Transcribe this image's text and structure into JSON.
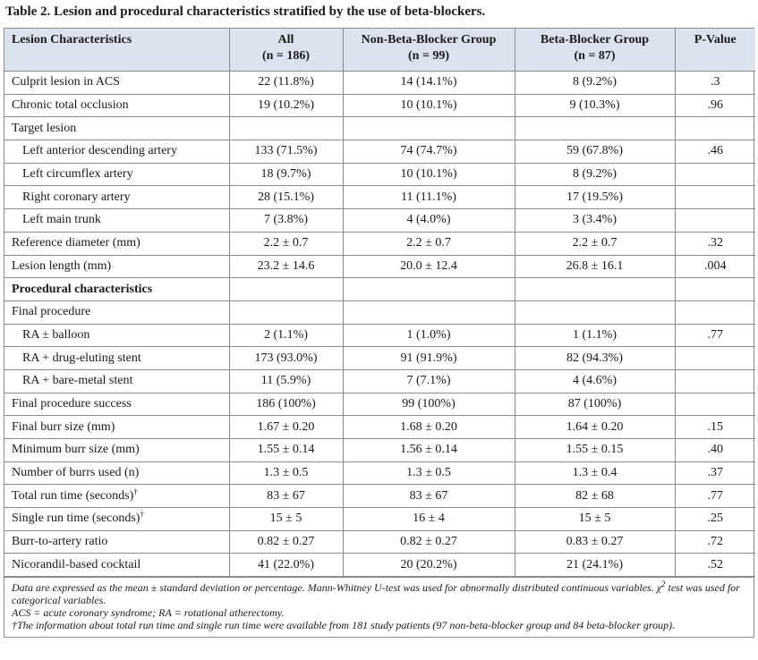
{
  "title": "Table 2. Lesion and procedural characteristics stratified by the use of beta-blockers.",
  "table": {
    "header": [
      [
        "Lesion Characteristics"
      ],
      [
        "All",
        "(n = 186)"
      ],
      [
        "Non-Beta-Blocker Group",
        "(n = 99)"
      ],
      [
        "Beta-Blocker Group",
        "(n = 87)"
      ],
      [
        "P-Value"
      ]
    ],
    "rows": [
      {
        "cells": [
          "Culprit lesion in ACS",
          "22 (11.8%)",
          "14 (14.1%)",
          "8 (9.2%)",
          ".3"
        ]
      },
      {
        "cells": [
          "Chronic total occlusion",
          "19 (10.2%)",
          "10 (10.1%)",
          "9 (10.3%)",
          ".96"
        ]
      },
      {
        "cells": [
          "Target lesion",
          null,
          null,
          null,
          null
        ]
      },
      {
        "cells": [
          "Left anterior descending artery",
          "133 (71.5%)",
          "74 (74.7%)",
          "59 (67.8%)",
          ".46"
        ],
        "indent": true
      },
      {
        "cells": [
          "Left circumflex artery",
          "18 (9.7%)",
          "10 (10.1%)",
          "8 (9.2%)",
          null
        ],
        "indent": true
      },
      {
        "cells": [
          "Right coronary artery",
          "28 (15.1%)",
          "11 (11.1%)",
          "17 (19.5%)",
          null
        ],
        "indent": true
      },
      {
        "cells": [
          "Left main trunk",
          "7 (3.8%)",
          "4 (4.0%)",
          "3 (3.4%)",
          null
        ],
        "indent": true
      },
      {
        "cells": [
          "Reference diameter (mm)",
          "2.2 ± 0.7",
          "2.2 ± 0.7",
          "2.2 ± 0.7",
          ".32"
        ]
      },
      {
        "cells": [
          "Lesion length (mm)",
          "23.2 ± 14.6",
          "20.0 ± 12.4",
          "26.8 ± 16.1",
          ".004"
        ]
      },
      {
        "cells": [
          "Procedural characteristics",
          null,
          null,
          null,
          null
        ],
        "bold": true
      },
      {
        "cells": [
          "Final procedure",
          null,
          null,
          null,
          null
        ]
      },
      {
        "cells": [
          "RA ± balloon",
          "2 (1.1%)",
          "1 (1.0%)",
          "1 (1.1%)",
          ".77"
        ],
        "indent": true
      },
      {
        "cells": [
          "RA + drug-eluting stent",
          "173 (93.0%)",
          "91 (91.9%)",
          "82 (94.3%)",
          null
        ],
        "indent": true
      },
      {
        "cells": [
          "RA + bare-metal stent",
          "11 (5.9%)",
          "7 (7.1%)",
          "4 (4.6%)",
          null
        ],
        "indent": true
      },
      {
        "cells": [
          "Final procedure success",
          "186 (100%)",
          "99 (100%)",
          "87 (100%)",
          null
        ]
      },
      {
        "cells": [
          "Final burr size (mm)",
          "1.67 ± 0.20",
          "1.68 ± 0.20",
          "1.64 ± 0.20",
          ".15"
        ]
      },
      {
        "cells": [
          "Minimum burr size (mm)",
          "1.55 ± 0.14",
          "1.56 ± 0.14",
          "1.55 ± 0.15",
          ".40"
        ]
      },
      {
        "cells": [
          "Number of burrs used (n)",
          "1.3 ± 0.5",
          "1.3 ± 0.5",
          "1.3 ± 0.4",
          ".37"
        ]
      },
      {
        "cells": [
          "Total run time (seconds)",
          "83 ± 67",
          "83 ± 67",
          "82 ± 68",
          ".77"
        ],
        "mark": "†"
      },
      {
        "cells": [
          "Single run time (seconds)",
          "15 ± 5",
          "16 ± 4",
          "15 ± 5",
          ".25"
        ],
        "mark": "†"
      },
      {
        "cells": [
          "Burr-to-artery ratio",
          "0.82 ± 0.27",
          "0.82 ± 0.27",
          "0.83 ± 0.27",
          ".72"
        ]
      },
      {
        "cells": [
          "Nicorandil-based cocktail",
          "41 (22.0%)",
          "20 (20.2%)",
          "21 (24.1%)",
          ".52"
        ]
      }
    ]
  },
  "notes": [
    {
      "before": "Data are expressed as the mean ± standard deviation or percentage. Mann-Whitney U-test was used for abnormally distributed continuous variables. ",
      "chi": "χ",
      "sup": "2",
      "after": " test was used for categorical variables."
    },
    {
      "text": "ACS = acute coronary syndrome; RA = rotational atherectomy."
    },
    {
      "text": "†The information about total run time and single run time were available from 181 study patients (97 non-beta-blocker group and 84 beta-blocker group)."
    }
  ]
}
